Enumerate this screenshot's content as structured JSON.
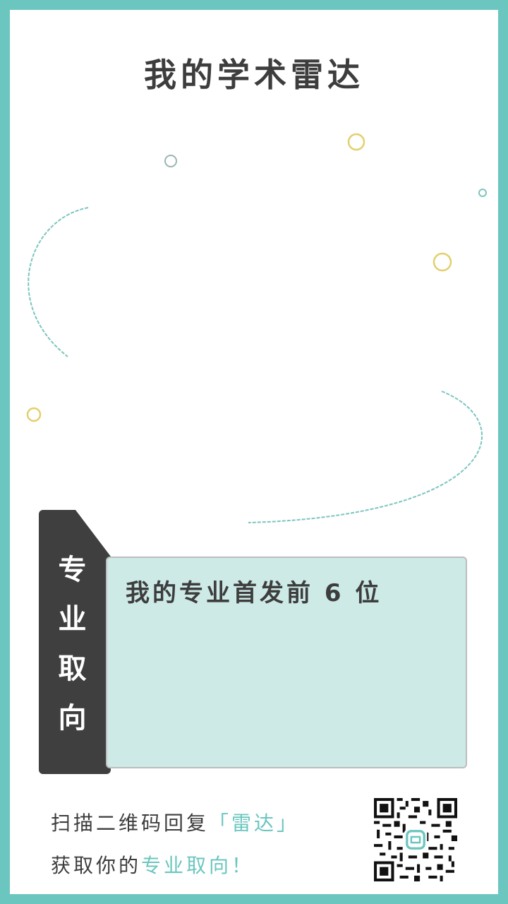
{
  "title": "我的学术雷达",
  "tag": {
    "chars": [
      "专",
      "业",
      "取",
      "向"
    ]
  },
  "box": {
    "heading": "我的专业首发前 6 位"
  },
  "footer": {
    "line1_prefix": "扫描二维码回复",
    "line1_highlight": "「雷达」",
    "line2_prefix": "获取你的",
    "line2_highlight": "专业取向！"
  },
  "colors": {
    "frame": "#6bc6bf",
    "accent": "#6bc6bf",
    "tag": "#3f3f3f",
    "box": "#cdeae7"
  },
  "icons": {
    "qr": "qr-code-icon"
  }
}
